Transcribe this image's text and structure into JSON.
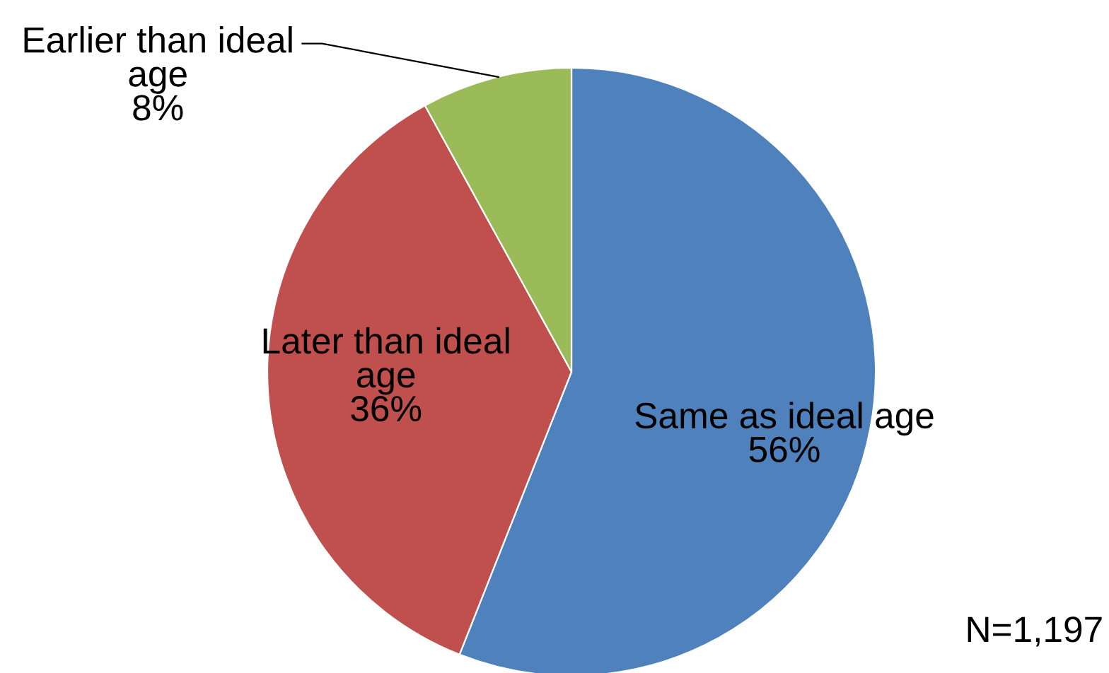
{
  "chart_data": {
    "type": "pie",
    "categories": [
      "Same as ideal age",
      "Later than ideal age",
      "Earlier than ideal age"
    ],
    "values": [
      56,
      36,
      8
    ],
    "colors": [
      "#4f81bd",
      "#c0504d",
      "#9bbb59"
    ],
    "value_labels": [
      "56%",
      "36%",
      "8%"
    ],
    "annotations": [
      "N=1,197"
    ]
  }
}
